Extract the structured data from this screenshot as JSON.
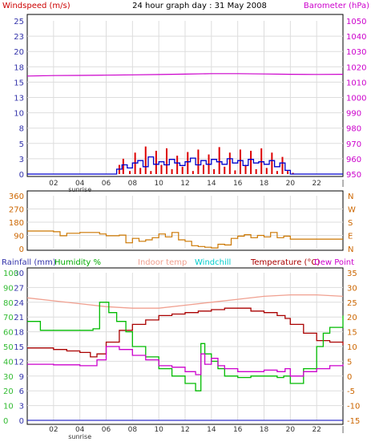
{
  "header": {
    "left_title": "Windspeed (m/s)",
    "center_title": "24 hour graph day : 31 May 2008",
    "right_title": "Barometer (hPa)"
  },
  "bottom_header": {
    "rainfall": "Rainfall (mm)",
    "humidity": "Humidity %",
    "indoor": "Indoor temp",
    "windchill": "Windchill",
    "temperature": "Temperature (°C)",
    "dewpoint": "Dew Point"
  },
  "colors": {
    "wind_gust": "#dd0000",
    "wind_avg": "#0000cc",
    "barometer": "#cc00cc",
    "direction": "#cc7700",
    "humidity": "#00bb00",
    "indoor": "#f0a090",
    "windchill": "#00cccc",
    "temperature": "#aa0000",
    "dewpoint": "#cc00cc",
    "rainfall": "#3333cc",
    "axis_left": "#3333aa",
    "axis_right_pink": "#cc00cc",
    "axis_right_orange": "#cc6600",
    "axis_humidity": "#33bb33"
  },
  "x_labels": [
    "02",
    "04",
    "06",
    "08",
    "10",
    "12",
    "14",
    "16",
    "18",
    "20",
    "22"
  ],
  "sunrise_label": "sunrise",
  "sunrise_hour": 4,
  "chart_data": [
    {
      "type": "line",
      "title": "24 hour graph day : 31 May 2008",
      "ylabel_left": "Windspeed (m/s)",
      "ylabel_right": "Barometer (hPa)",
      "y_ticks": [
        "25",
        "23",
        "20",
        "18",
        "15",
        "13",
        "10",
        "8",
        "5",
        "3",
        "0"
      ],
      "y_right_ticks": [
        "1050",
        "1040",
        "1030",
        "1020",
        "1010",
        "1000",
        "990",
        "980",
        "970",
        "960",
        "950"
      ],
      "ylim": [
        0,
        25
      ],
      "y_right_lim": [
        950,
        1055
      ],
      "series": [
        {
          "name": "Barometer (hPa)",
          "x": [
            0,
            2,
            4,
            6,
            8,
            10,
            12,
            14,
            16,
            18,
            20,
            22,
            24
          ],
          "values": [
            1017.2,
            1017.5,
            1017.6,
            1017.8,
            1018.0,
            1018.2,
            1018.5,
            1018.8,
            1018.8,
            1018.6,
            1018.4,
            1018.3,
            1018.4
          ]
        },
        {
          "name": "Windspeed (m/s)",
          "x": [
            0,
            6,
            6.8,
            7.2,
            7.6,
            8,
            8.4,
            8.8,
            9.2,
            9.6,
            10,
            10.4,
            10.8,
            11.2,
            11.6,
            12,
            12.4,
            12.8,
            13.2,
            13.6,
            14,
            14.4,
            14.8,
            15.2,
            15.6,
            16,
            16.4,
            16.8,
            17.2,
            17.6,
            18,
            18.4,
            18.8,
            19.2,
            19.6,
            20,
            24
          ],
          "values": [
            0,
            0,
            0.8,
            1.5,
            1.0,
            1.8,
            2.2,
            1.2,
            2.8,
            1.6,
            2.0,
            1.5,
            2.4,
            1.8,
            1.4,
            2.0,
            2.6,
            1.5,
            2.2,
            1.6,
            2.4,
            2.0,
            1.6,
            2.5,
            1.8,
            2.2,
            1.4,
            2.4,
            1.8,
            2.0,
            1.6,
            2.2,
            1.2,
            1.8,
            0.6,
            0,
            0
          ]
        },
        {
          "name": "Gust (m/s)",
          "x": [
            0,
            6.5,
            7.0,
            7.3,
            7.8,
            8.2,
            8.6,
            9.0,
            9.4,
            9.8,
            10.2,
            10.6,
            11.0,
            11.4,
            11.8,
            12.2,
            12.6,
            13.0,
            13.4,
            13.8,
            14.2,
            14.6,
            15.0,
            15.4,
            15.8,
            16.2,
            16.6,
            17.0,
            17.4,
            17.8,
            18.2,
            18.6,
            19.0,
            19.4,
            19.8,
            20.2,
            24
          ],
          "values": [
            0,
            0,
            1.5,
            2.5,
            0.5,
            3.5,
            1.0,
            4.5,
            0.5,
            3.8,
            1.5,
            4.2,
            0.8,
            3.0,
            1.2,
            3.6,
            0.5,
            4.0,
            1.5,
            3.2,
            0.8,
            4.4,
            1.2,
            3.5,
            0.6,
            4.0,
            1.5,
            3.8,
            0.8,
            4.2,
            1.0,
            3.5,
            0.5,
            2.8,
            0.5,
            0.2,
            0
          ]
        }
      ]
    },
    {
      "type": "line",
      "ylabel": "Wind direction",
      "y_ticks": [
        "360",
        "270",
        "180",
        "90",
        "0"
      ],
      "y_right_ticks": [
        "N",
        "W",
        "S",
        "E",
        "N"
      ],
      "ylim": [
        0,
        360
      ],
      "series": [
        {
          "name": "Direction",
          "x": [
            0,
            1.5,
            2,
            2.5,
            3,
            4,
            5,
            5.5,
            6,
            6.5,
            7,
            7.5,
            8,
            8.5,
            9,
            9.5,
            10,
            10.5,
            11,
            11.5,
            12,
            12.5,
            13,
            13.5,
            14,
            14.5,
            15,
            15.5,
            16,
            16.5,
            17,
            17.5,
            18,
            18.5,
            19,
            19.5,
            20,
            21,
            22,
            24
          ],
          "values": [
            120,
            120,
            115,
            88,
            105,
            110,
            110,
            100,
            88,
            88,
            92,
            40,
            70,
            50,
            60,
            75,
            100,
            80,
            110,
            60,
            50,
            20,
            15,
            10,
            5,
            30,
            25,
            70,
            85,
            95,
            75,
            90,
            80,
            110,
            75,
            85,
            65,
            65,
            65,
            65
          ]
        }
      ]
    },
    {
      "type": "line",
      "yaxis_rainfall": [
        "30",
        "27",
        "24",
        "21",
        "18",
        "15",
        "12",
        "9",
        "6",
        "3",
        "0"
      ],
      "yaxis_humidity": [
        "100",
        "90",
        "80",
        "70",
        "60",
        "50",
        "40",
        "30",
        "20",
        "10",
        "0"
      ],
      "yaxis_temperature": [
        "35",
        "30",
        "25",
        "20",
        "15",
        "10",
        "5",
        "0",
        "-5",
        "-10",
        "-15"
      ],
      "ylim_temperature": [
        -15,
        35
      ],
      "ylim_humidity": [
        0,
        100
      ],
      "series": [
        {
          "name": "Indoor temp",
          "axis": "temperature",
          "x": [
            0,
            2,
            4,
            6,
            8,
            10,
            12,
            14,
            16,
            18,
            20,
            22,
            24
          ],
          "values": [
            26.5,
            25.5,
            24.5,
            23.5,
            23.0,
            23.0,
            24.0,
            25.0,
            26.0,
            27.0,
            27.5,
            27.5,
            27.0
          ]
        },
        {
          "name": "Temperature (°C)",
          "axis": "temperature",
          "x": [
            0,
            2,
            3,
            4,
            4.8,
            5.3,
            6,
            7,
            8,
            9,
            10,
            11,
            12,
            13,
            14,
            15,
            16,
            17,
            18,
            19,
            19.6,
            20,
            21,
            22,
            23,
            24
          ],
          "values": [
            9.5,
            9.0,
            8.5,
            8.0,
            6.5,
            7.5,
            11.5,
            15.5,
            17.5,
            19.0,
            20.5,
            21.0,
            21.5,
            22.0,
            22.5,
            23.0,
            23.0,
            22.0,
            21.5,
            20.5,
            19.5,
            17.5,
            14.5,
            12.0,
            11.5,
            10.5
          ]
        },
        {
          "name": "Humidity %",
          "axis": "humidity",
          "x": [
            0,
            1,
            2,
            3,
            4.5,
            5,
            5.5,
            5.8,
            6.2,
            6.8,
            7.5,
            8,
            9,
            10,
            11,
            12,
            12.8,
            13.2,
            13.5,
            14,
            14.5,
            15,
            16,
            17,
            18,
            19,
            19.5,
            20,
            21,
            22,
            22.5,
            23,
            24
          ],
          "values": [
            67,
            61,
            61,
            61,
            61,
            62,
            80,
            80,
            73,
            67,
            60,
            50,
            43,
            35,
            30,
            25,
            20,
            52,
            45,
            40,
            35,
            30,
            29,
            30,
            30,
            29,
            30,
            25,
            35,
            50,
            59,
            63,
            71
          ]
        },
        {
          "name": "Dew Point",
          "axis": "temperature",
          "x": [
            0,
            2,
            4,
            4.8,
            5.3,
            6,
            7,
            8,
            9,
            10,
            11,
            12,
            12.8,
            13.2,
            13.5,
            14,
            14.5,
            15,
            16,
            17,
            18,
            19,
            19.6,
            20,
            21,
            22,
            23,
            24
          ],
          "values": [
            4.0,
            3.8,
            3.5,
            3.5,
            5.5,
            10.0,
            9.0,
            7.0,
            5.5,
            3.5,
            3.0,
            1.5,
            0.5,
            7.5,
            4.0,
            6.0,
            3.5,
            2.5,
            1.5,
            1.5,
            2.0,
            1.5,
            2.5,
            0.0,
            1.5,
            2.5,
            3.5,
            4.0
          ]
        },
        {
          "name": "Rainfall (mm)",
          "axis": "rainfall",
          "x": [
            0,
            24
          ],
          "values": [
            0,
            0
          ]
        }
      ]
    }
  ]
}
